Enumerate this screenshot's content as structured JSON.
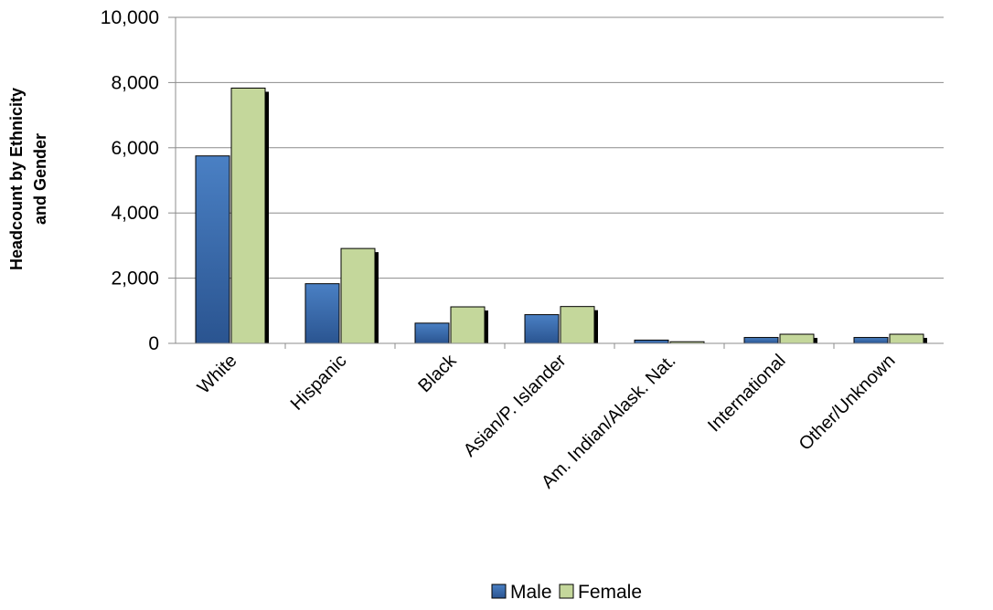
{
  "chart_data": {
    "type": "bar",
    "categories": [
      "White",
      "Hispanic",
      "Black",
      "Asian/P. Islander",
      "Am. Indian/Alask. Nat.",
      "International",
      "Other/Unknown"
    ],
    "series": [
      {
        "name": "Male",
        "values": [
          5750,
          1830,
          620,
          880,
          100,
          180,
          180
        ],
        "color": "#3a6fb5"
      },
      {
        "name": "Female",
        "values": [
          7830,
          2910,
          1120,
          1130,
          50,
          280,
          280
        ],
        "color": "#c4d79b"
      }
    ],
    "ylabel_lines": [
      "Headcount by Ethnicity",
      "and Gender"
    ],
    "ylim": [
      0,
      10000
    ],
    "yticks": [
      0,
      2000,
      4000,
      6000,
      8000,
      10000
    ],
    "ytick_labels": [
      "0",
      "2,000",
      "4,000",
      "6,000",
      "8,000",
      "10,000"
    ],
    "grid": true,
    "legend_position": "bottom",
    "legend": [
      "Male",
      "Female"
    ]
  }
}
